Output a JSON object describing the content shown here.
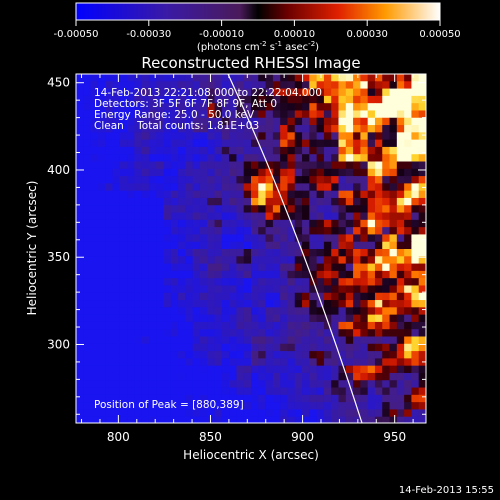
{
  "colorbar": {
    "ticks": [
      "-0.00050",
      "-0.00030",
      "-0.00010",
      "0.00010",
      "0.00030",
      "0.00050"
    ],
    "tick_values": [
      -0.0005,
      -0.0003,
      -0.0001,
      0.0001,
      0.0003,
      0.0005
    ],
    "unit_prefix": "(photons cm",
    "unit_exp1": "-2",
    "unit_mid1": " s",
    "unit_exp2": "-1",
    "unit_mid2": " asec",
    "unit_exp3": "-2",
    "unit_suffix": ")"
  },
  "plot": {
    "title": "Reconstructed RHESSI Image",
    "xlabel": "Heliocentric X (arcsec)",
    "ylabel": "Heliocentric Y (arcsec)",
    "xlim": [
      777,
      967
    ],
    "ylim": [
      255,
      455
    ],
    "xticks": [
      800,
      850,
      900,
      950
    ],
    "yticks": [
      300,
      350,
      400,
      450
    ],
    "info_lines": [
      "14-Feb-2013 22:21:08.000 to 22:22:04.000",
      "Detectors: 3F 5F 6F 7F 8F 9F, Att 0",
      "Energy Range: 25.0 - 50.0 keV",
      "Clean    Total counts: 1.81E+03"
    ],
    "peak_label": "Position of Peak = [880,389]"
  },
  "footer": {
    "timestamp": "14-Feb-2013 15:55"
  }
}
